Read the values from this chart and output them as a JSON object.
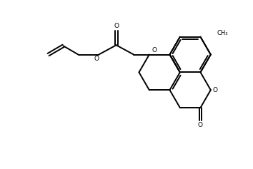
{
  "bg_color": "#ffffff",
  "line_color": "#000000",
  "lw": 1.4,
  "figsize": [
    3.54,
    2.37
  ],
  "dpi": 100,
  "xlim": [
    0,
    10
  ],
  "ylim": [
    0,
    6.7
  ]
}
